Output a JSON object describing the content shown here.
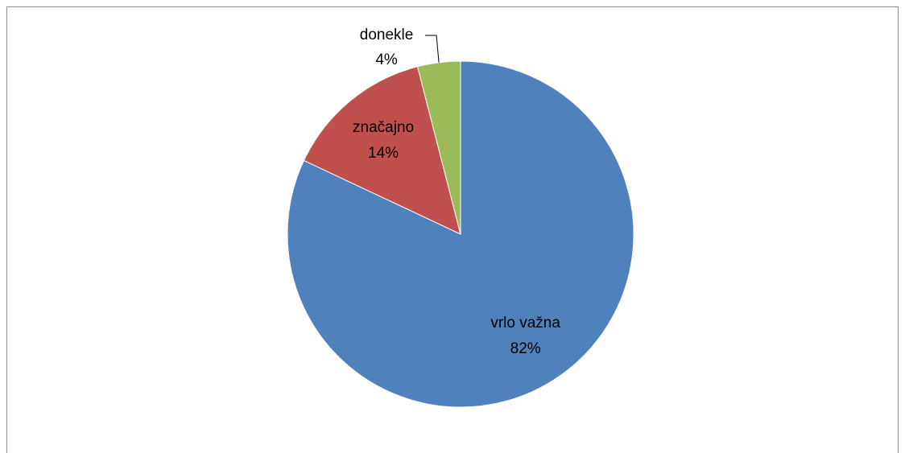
{
  "chart_data": {
    "type": "pie",
    "categories": [
      "vrlo važna",
      "značajno",
      "donekle"
    ],
    "values": [
      82,
      14,
      4
    ],
    "value_labels": [
      "82%",
      "14%",
      "4%"
    ],
    "colors": [
      "#4f81bd",
      "#c0504d",
      "#9bbb59"
    ]
  }
}
